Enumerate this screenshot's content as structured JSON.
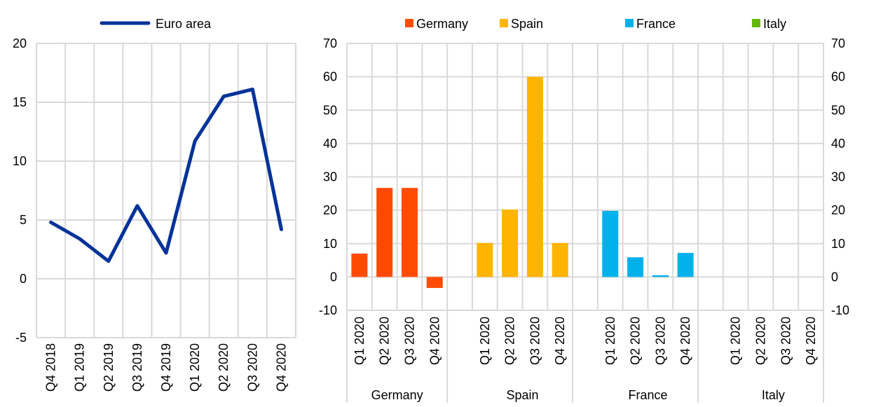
{
  "chart_data": [
    {
      "type": "line",
      "legend": [
        "Euro area"
      ],
      "legend_placement": "top",
      "categories": [
        "Q4 2018",
        "Q1 2019",
        "Q2 2019",
        "Q3 2019",
        "Q4 2019",
        "Q1 2020",
        "Q2 2020",
        "Q3 2020",
        "Q4 2020"
      ],
      "series": [
        {
          "name": "Euro area",
          "color": "#003299",
          "values": [
            4.8,
            3.4,
            1.5,
            6.2,
            2.2,
            11.7,
            15.5,
            16.1,
            4.2
          ]
        }
      ],
      "ylim": [
        -5,
        20
      ],
      "yticks": [
        -5,
        0,
        5,
        10,
        15,
        20
      ],
      "grid": true
    },
    {
      "type": "bar",
      "legend_placement": "top",
      "quarters": [
        "Q1 2020",
        "Q2 2020",
        "Q3 2020",
        "Q4 2020"
      ],
      "groups": [
        {
          "name": "Germany",
          "color": "#FF4B00",
          "values": [
            7.0,
            26.7,
            26.7,
            -3.3
          ]
        },
        {
          "name": "Spain",
          "color": "#FFB400",
          "values": [
            10.2,
            20.2,
            60.0,
            10.2
          ]
        },
        {
          "name": "France",
          "color": "#00B1EA",
          "values": [
            19.8,
            5.9,
            0.5,
            7.2
          ]
        },
        {
          "name": "Italy",
          "color": "#65B800",
          "values": [
            null,
            null,
            null,
            null
          ]
        }
      ],
      "ylim": [
        -10,
        70
      ],
      "yticks": [
        -10,
        0,
        10,
        20,
        30,
        40,
        50,
        60,
        70
      ],
      "secondary_axis": true,
      "grid": true
    }
  ]
}
